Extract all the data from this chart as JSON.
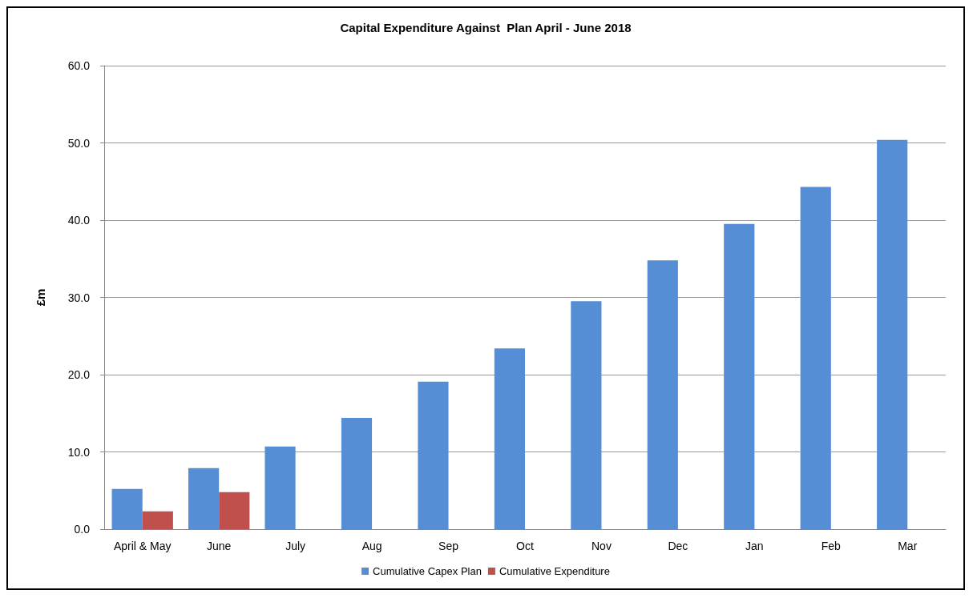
{
  "chart_data": {
    "type": "bar",
    "title": "Capital Expenditure Against  Plan April - June 2018",
    "ylabel": "£m",
    "categories": [
      "April & May",
      "June",
      "July",
      "Aug",
      "Sep",
      "Oct",
      "Nov",
      "Dec",
      "Jan",
      "Feb",
      "Mar"
    ],
    "series": [
      {
        "name": "Cumulative Capex Plan",
        "color": "#558ed5",
        "values": [
          5.2,
          7.9,
          10.7,
          14.4,
          19.1,
          23.4,
          29.5,
          34.8,
          39.5,
          44.3,
          50.4
        ]
      },
      {
        "name": "Cumulative Expenditure",
        "color": "#c0504d",
        "values": [
          2.3,
          4.8,
          null,
          null,
          null,
          null,
          null,
          null,
          null,
          null,
          null
        ]
      }
    ],
    "ylim": [
      0,
      60
    ],
    "yticks": [
      {
        "value": 0,
        "label": "0.0"
      },
      {
        "value": 10,
        "label": "10.0"
      },
      {
        "value": 20,
        "label": "20.0"
      },
      {
        "value": 30,
        "label": "30.0"
      },
      {
        "value": 40,
        "label": "40.0"
      },
      {
        "value": 50,
        "label": "50.0"
      },
      {
        "value": 60,
        "label": "60.0"
      }
    ],
    "grid": "y",
    "legend": "bottom"
  }
}
